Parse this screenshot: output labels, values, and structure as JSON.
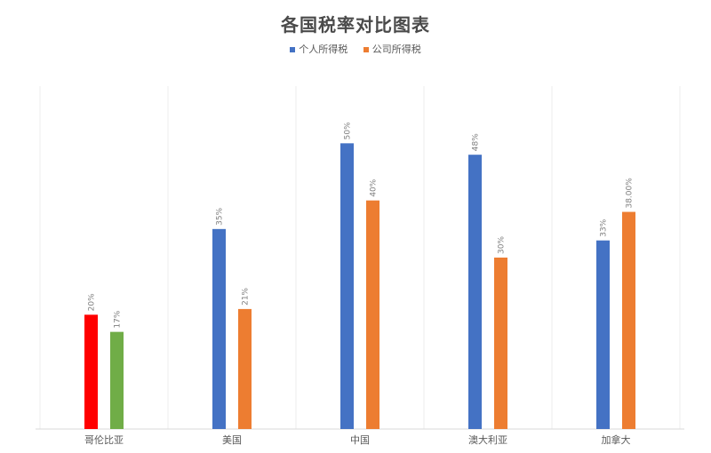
{
  "chart_data": {
    "type": "bar",
    "title": "各国税率对比图表",
    "categories": [
      "哥伦比亚",
      "美国",
      "中国",
      "澳大利亚",
      "加拿大"
    ],
    "series": [
      {
        "name": "个人所得税",
        "color": "#4472c4",
        "values": [
          20,
          35,
          50,
          48,
          33
        ],
        "labels": [
          "20%",
          "35%",
          "50%",
          "48%",
          "33%"
        ],
        "point_colors": [
          "#ff0000",
          null,
          null,
          null,
          null
        ]
      },
      {
        "name": "公司所得税",
        "color": "#ed7d31",
        "values": [
          17,
          21,
          40,
          30,
          38
        ],
        "labels": [
          "17%",
          "21%",
          "40%",
          "30%",
          "38.00%"
        ],
        "point_colors": [
          "#70ad47",
          null,
          null,
          null,
          null
        ]
      }
    ],
    "ylim": [
      0,
      60
    ],
    "grid": "vertical",
    "legend_position": "top"
  }
}
